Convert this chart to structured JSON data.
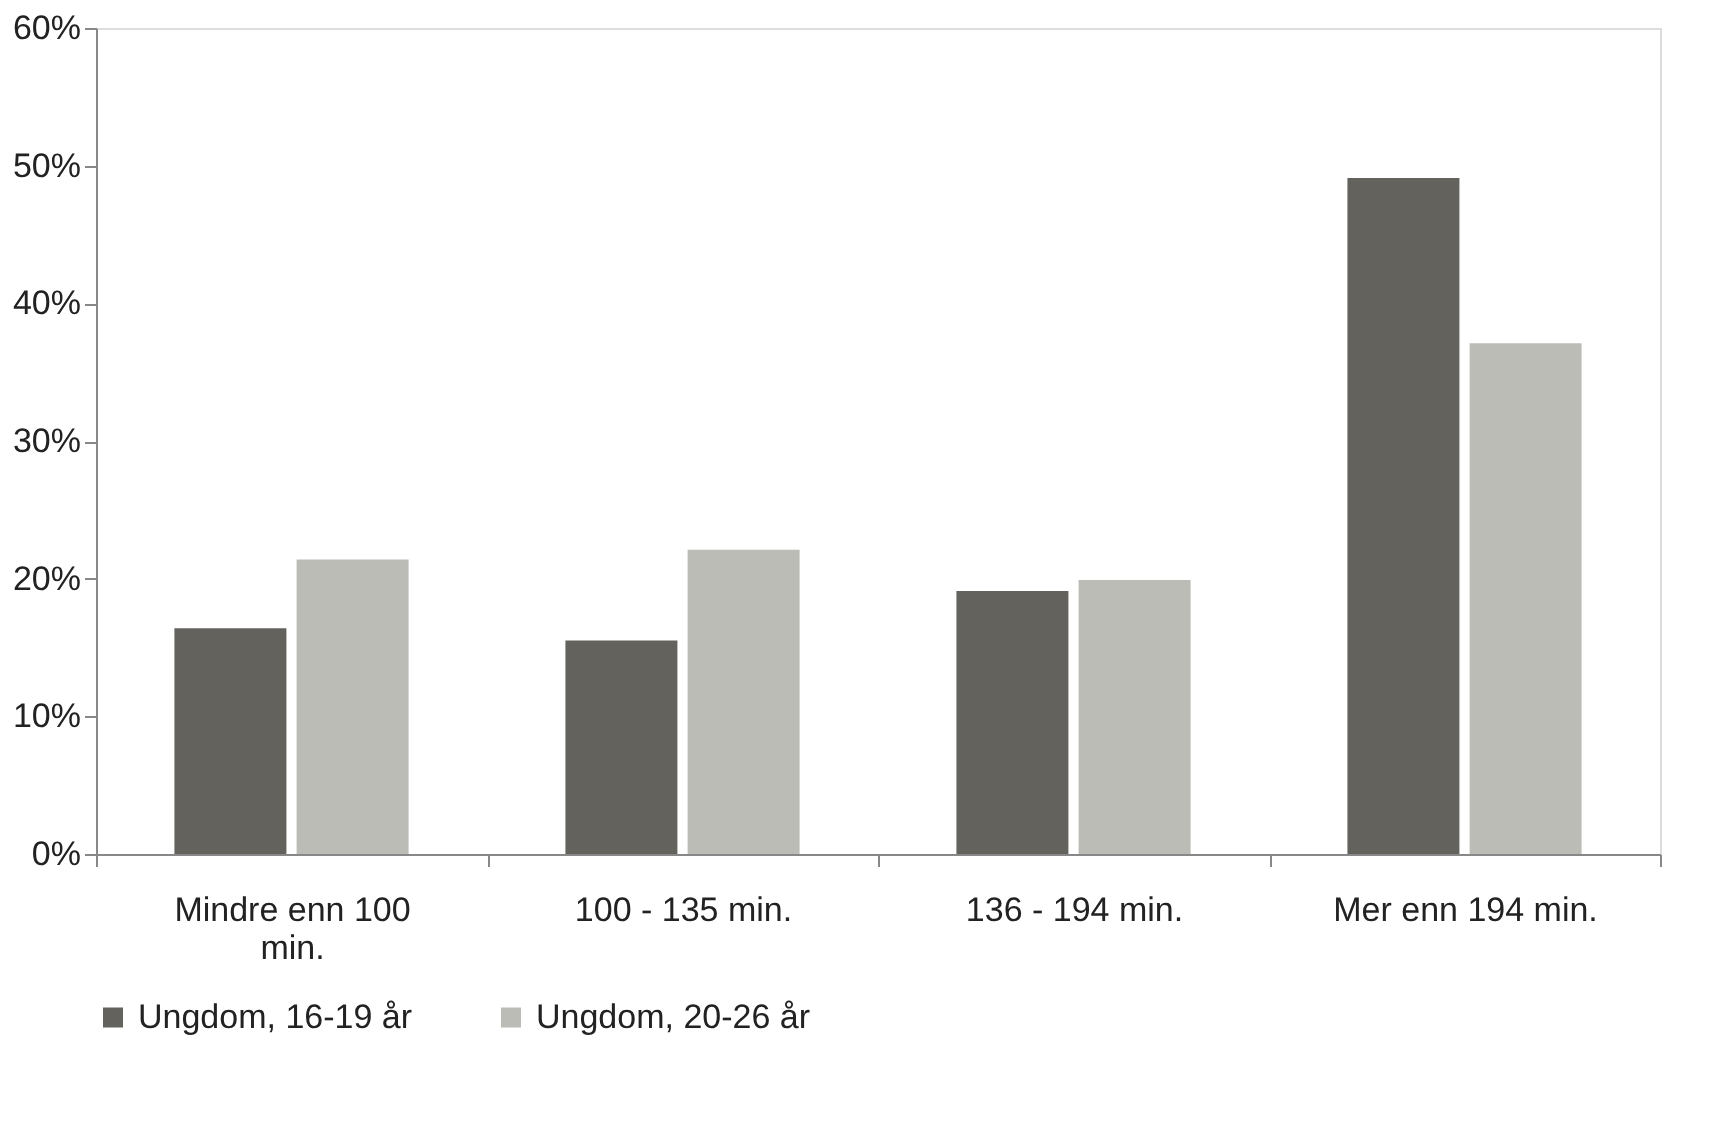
{
  "chart_data": {
    "type": "bar",
    "categories": [
      "Mindre enn 100 min.",
      "100 - 135 min.",
      "136 - 194 min.",
      "Mer enn 194 min."
    ],
    "series": [
      {
        "name": "Ungdom, 16-19 år",
        "color": "#63625c",
        "values": [
          16.4,
          15.5,
          19.1,
          49.1
        ]
      },
      {
        "name": "Ungdom, 20-26 år",
        "color": "#bcbcb6",
        "values": [
          21.4,
          22.1,
          19.9,
          37.1
        ]
      }
    ],
    "ylim": [
      0,
      60
    ],
    "yticks": [
      {
        "value": 0,
        "label": "0%"
      },
      {
        "value": 10,
        "label": "10%"
      },
      {
        "value": 20,
        "label": "20%"
      },
      {
        "value": 30,
        "label": "30%"
      },
      {
        "value": 40,
        "label": "40%"
      },
      {
        "value": 50,
        "label": "50%"
      },
      {
        "value": 60,
        "label": "60%"
      }
    ],
    "grid": false,
    "legend": "bottom"
  }
}
